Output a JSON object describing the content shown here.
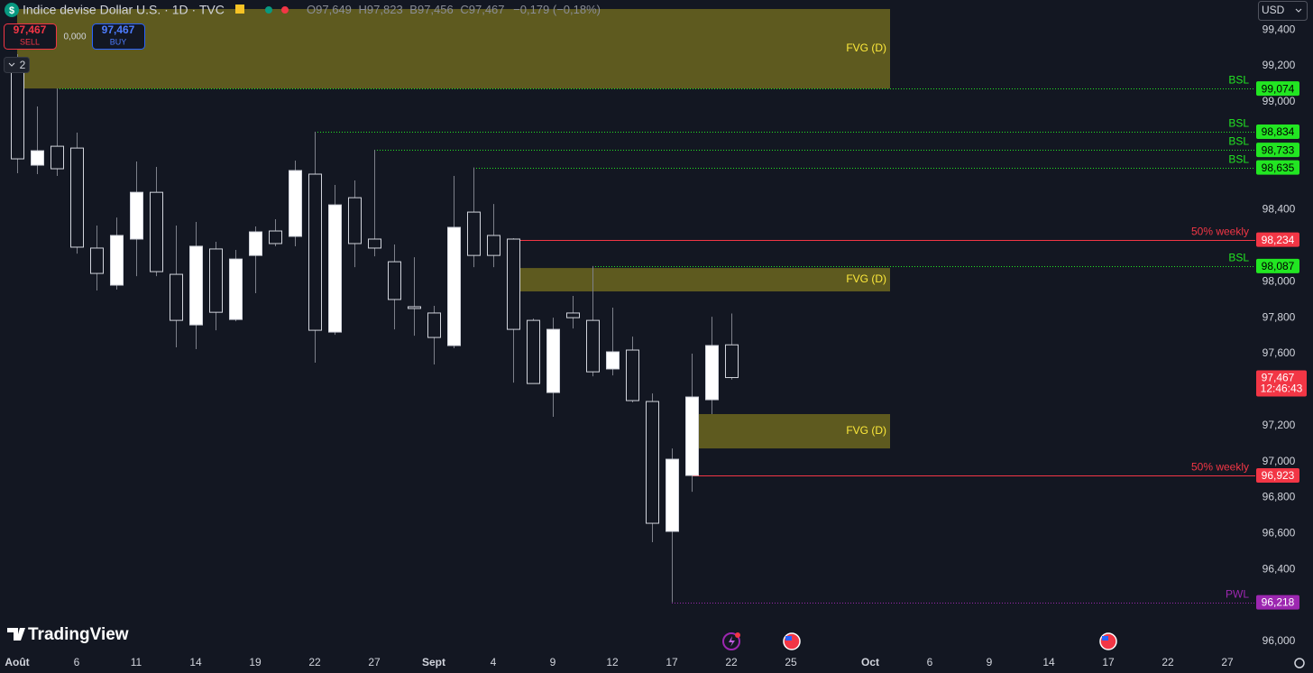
{
  "ui": {
    "symbol_title": "Indice devise Dollar U.S. · 1D · TVC",
    "ohlc_header": [
      {
        "key": "O",
        "value": "97,649"
      },
      {
        "key": "H",
        "value": "97,823"
      },
      {
        "key": "B",
        "value": "97,456"
      },
      {
        "key": "C",
        "value": "97,467"
      }
    ],
    "change": "−0,179 (−0,18%)",
    "sell": {
      "price": "97,467",
      "label": "SELL"
    },
    "spread": "0,000",
    "buy": {
      "price": "97,467",
      "label": "BUY"
    },
    "indicators_count": 2,
    "currency": "USD",
    "countdown": "12:46:43",
    "logo": "TradingView"
  },
  "chart_data": {
    "type": "candlestick",
    "categories": [
      "Août",
      null,
      null,
      "6",
      null,
      null,
      "11",
      null,
      null,
      "14",
      null,
      null,
      "19",
      null,
      null,
      "22",
      null,
      null,
      "27",
      null,
      null,
      "Sept",
      null,
      null,
      "4",
      null,
      null,
      "9",
      null,
      null,
      "12",
      null,
      null,
      "17",
      null,
      null,
      "22",
      null,
      null,
      "25",
      null,
      null,
      null,
      "Oct",
      null,
      null,
      "6",
      null,
      null,
      "9",
      null,
      null,
      "14",
      null,
      null,
      "17",
      null,
      null,
      "22",
      null,
      null,
      "27"
    ],
    "open": [
      99.165,
      98.648,
      98.753,
      98.743,
      98.187,
      97.981,
      98.237,
      98.497,
      98.041,
      97.76,
      98.182,
      97.79,
      98.146,
      98.282,
      98.252,
      98.598,
      97.72,
      98.467,
      98.237,
      98.111,
      97.861,
      97.826,
      97.645,
      98.387,
      98.257,
      98.237,
      97.785,
      97.384,
      97.826,
      97.785,
      97.515,
      97.62,
      97.334,
      96.612,
      96.923,
      97.344,
      97.649,
      null,
      null,
      null,
      null,
      null,
      null,
      null,
      null,
      null,
      null,
      null,
      null,
      null,
      null,
      null,
      null,
      null,
      null,
      null,
      null,
      null,
      null,
      null,
      null,
      null
    ],
    "high": [
      99.265,
      98.974,
      99.074,
      98.829,
      98.312,
      98.357,
      98.668,
      98.638,
      98.312,
      98.332,
      98.222,
      98.177,
      98.307,
      98.347,
      98.673,
      98.834,
      98.538,
      98.563,
      98.733,
      98.207,
      98.136,
      97.866,
      98.588,
      98.635,
      98.432,
      98.242,
      97.795,
      97.8,
      97.921,
      98.087,
      97.856,
      97.695,
      97.379,
      97.073,
      97.6,
      97.805,
      97.823,
      null,
      null,
      null,
      null,
      null,
      null,
      null,
      null,
      null,
      null,
      null,
      null,
      null,
      null,
      null,
      null,
      null,
      null,
      null,
      null,
      null,
      null,
      null,
      null,
      null
    ],
    "low": [
      98.603,
      98.598,
      98.588,
      98.156,
      97.951,
      97.956,
      98.031,
      98.031,
      97.635,
      97.625,
      97.73,
      97.78,
      97.936,
      98.197,
      98.197,
      97.55,
      97.705,
      98.081,
      98.141,
      97.735,
      97.7,
      97.54,
      97.63,
      98.081,
      98.081,
      97.439,
      97.434,
      97.249,
      97.74,
      97.474,
      97.479,
      97.329,
      96.552,
      96.218,
      96.832,
      97.264,
      97.456,
      null,
      null,
      null,
      null,
      null,
      null,
      null,
      null,
      null,
      null,
      null,
      null,
      null,
      null,
      null,
      null,
      null,
      null,
      null,
      null,
      null,
      null,
      null,
      null,
      null
    ],
    "close": [
      98.683,
      98.728,
      98.628,
      98.192,
      98.046,
      98.257,
      98.497,
      98.056,
      97.785,
      98.197,
      97.83,
      98.126,
      98.277,
      98.212,
      98.618,
      97.73,
      98.427,
      98.212,
      98.187,
      97.901,
      97.851,
      97.69,
      98.302,
      98.146,
      98.146,
      97.735,
      97.434,
      97.735,
      97.8,
      97.499,
      97.61,
      97.339,
      96.657,
      97.013,
      97.359,
      97.645,
      97.467,
      null,
      null,
      null,
      null,
      null,
      null,
      null,
      null,
      null,
      null,
      null,
      null,
      null,
      null,
      null,
      null,
      null,
      null,
      null,
      null,
      null,
      null,
      null,
      null,
      null
    ],
    "up_color": "#ffffff",
    "down_color": "#131722",
    "border_color": "#d1d4dc",
    "wick_color": "#7d808a",
    "ylim": [
      95.94,
      99.566
    ],
    "yticks": [
      {
        "value": 96.0,
        "label": "96,000"
      },
      {
        "value": 96.4,
        "label": "96,400"
      },
      {
        "value": 96.6,
        "label": "96,600"
      },
      {
        "value": 96.8,
        "label": "96,800"
      },
      {
        "value": 97.0,
        "label": "97,000"
      },
      {
        "value": 97.2,
        "label": "97,200"
      },
      {
        "value": 97.6,
        "label": "97,600"
      },
      {
        "value": 97.8,
        "label": "97,800"
      },
      {
        "value": 98.0,
        "label": "98,000"
      },
      {
        "value": 98.4,
        "label": "98,400"
      },
      {
        "value": 99.0,
        "label": "99,000"
      },
      {
        "value": 99.2,
        "label": "99,200"
      },
      {
        "value": 99.4,
        "label": "99,400"
      }
    ],
    "grid": false,
    "last_price": {
      "value": 97.467,
      "label": "97,467",
      "color": "#f23645"
    },
    "zones": [
      {
        "name": "FVG (D)",
        "low": 99.074,
        "high": 99.516,
        "start": 0,
        "end": 44,
        "color": "#5e5a1f",
        "text_color": "#ffeb3b"
      },
      {
        "name": "FVG (D)",
        "low": 97.946,
        "high": 98.076,
        "start": 25,
        "end": 44,
        "color": "#5e5a1f",
        "text_color": "#ffeb3b"
      },
      {
        "name": "FVG (D)",
        "low": 97.073,
        "high": 97.264,
        "start": 34,
        "end": 44,
        "color": "#5e5a1f",
        "text_color": "#ffeb3b"
      }
    ],
    "levels": [
      {
        "name": "BSL",
        "value": 99.074,
        "label": "99,074",
        "start": 2,
        "style": "dotted",
        "color": "#22e622",
        "text_color": "#000000"
      },
      {
        "name": "BSL",
        "value": 98.834,
        "label": "98,834",
        "start": 15,
        "style": "dotted",
        "color": "#22e622",
        "text_color": "#000000"
      },
      {
        "name": "BSL",
        "value": 98.733,
        "label": "98,733",
        "start": 18,
        "style": "dotted",
        "color": "#22e622",
        "text_color": "#000000"
      },
      {
        "name": "BSL",
        "value": 98.635,
        "label": "98,635",
        "start": 23,
        "style": "dotted",
        "color": "#22e622",
        "text_color": "#000000"
      },
      {
        "name": "50% weekly",
        "value": 98.234,
        "label": "98,234",
        "start": 25,
        "style": "solid",
        "color": "#f23645",
        "text_color": "#ffffff"
      },
      {
        "name": "BSL",
        "value": 98.087,
        "label": "98,087",
        "start": 29,
        "style": "dotted",
        "color": "#22e622",
        "text_color": "#000000"
      },
      {
        "name": "50% weekly",
        "value": 96.923,
        "label": "96,923",
        "start": 34,
        "style": "solid",
        "color": "#f23645",
        "text_color": "#ffffff"
      },
      {
        "name": "PWL",
        "value": 96.218,
        "label": "96,218",
        "start": 33,
        "style": "dotted",
        "color": "#9c27b0",
        "text_color": "#ffffff"
      }
    ]
  }
}
